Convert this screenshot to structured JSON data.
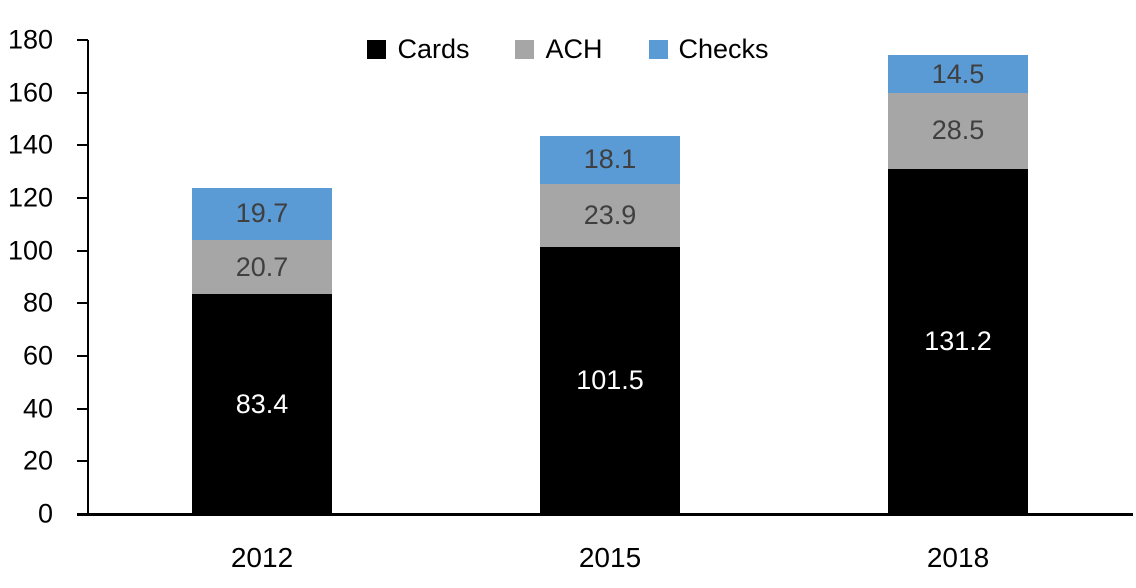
{
  "chart_data": {
    "type": "bar",
    "stacked": true,
    "title": "",
    "xlabel": "",
    "ylabel": "",
    "categories": [
      "2012",
      "2015",
      "2018"
    ],
    "series": [
      {
        "name": "Cards",
        "color": "#000000",
        "label_color": "#FFFFFF",
        "values": [
          83.4,
          101.5,
          131.2
        ]
      },
      {
        "name": "ACH",
        "color": "#A6A6A6",
        "label_color": "#3F3F3F",
        "values": [
          20.7,
          23.9,
          28.5
        ]
      },
      {
        "name": "Checks",
        "color": "#5B9BD5",
        "label_color": "#3F3F3F",
        "values": [
          19.7,
          18.1,
          14.5
        ]
      }
    ],
    "totals": [
      123.8,
      143.5,
      174.2
    ],
    "ylim": [
      0,
      180
    ],
    "yticks": [
      0,
      20,
      40,
      60,
      80,
      100,
      120,
      140,
      160,
      180
    ],
    "legend_position": "top-center",
    "grid": false,
    "axis_color": "#000000",
    "background_color": "#FFFFFF"
  }
}
